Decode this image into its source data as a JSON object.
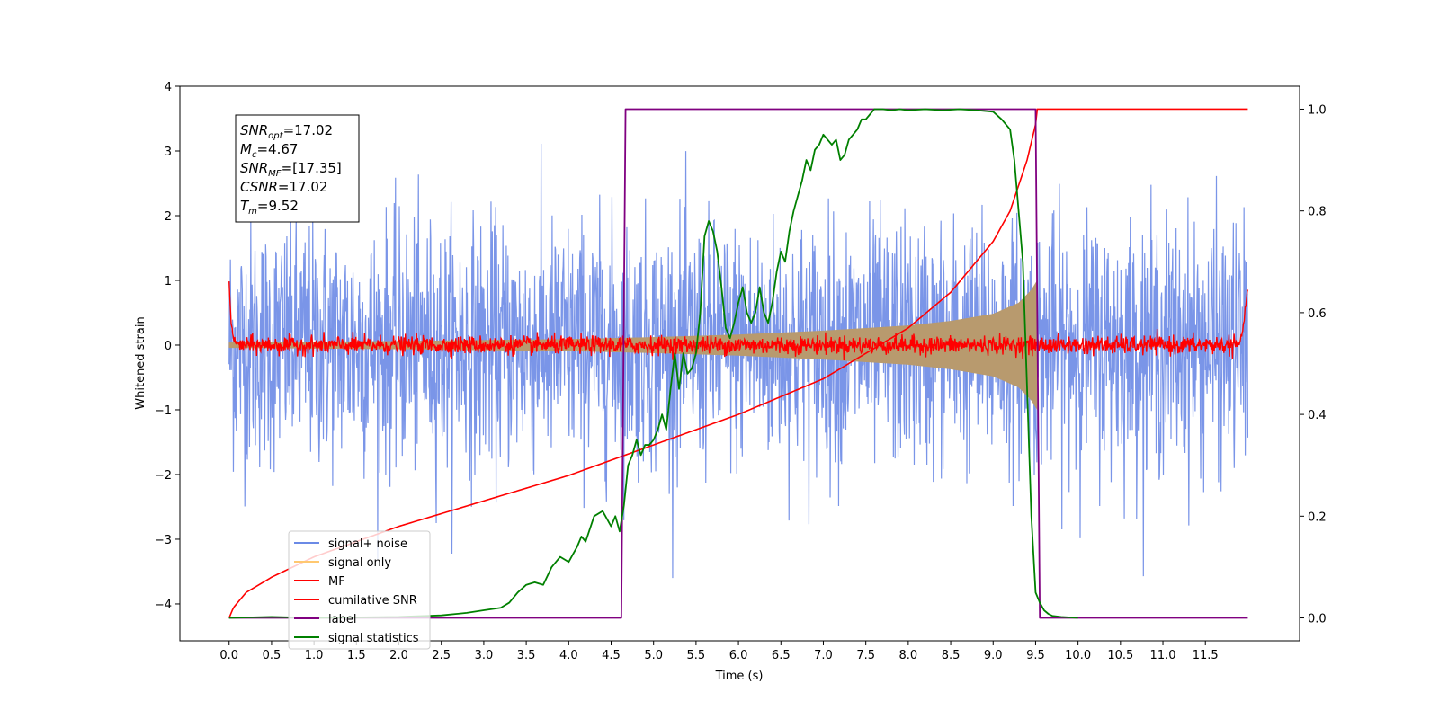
{
  "chart_data": {
    "type": "line",
    "xlabel": "Time (s)",
    "ylabel": "Whitened strain",
    "x_ticks": [
      "0.0",
      "0.5",
      "1.0",
      "1.5",
      "2.0",
      "2.5",
      "3.0",
      "3.5",
      "4.0",
      "4.5",
      "5.0",
      "5.5",
      "6.0",
      "6.5",
      "7.0",
      "7.5",
      "8.0",
      "8.5",
      "9.0",
      "9.5",
      "10.0",
      "10.5",
      "11.0",
      "11.5"
    ],
    "y_ticks": [
      "4",
      "3",
      "2",
      "1",
      "0",
      "−1",
      "−2",
      "−3",
      "−4"
    ],
    "y2_ticks": [
      "1.0",
      "0.8",
      "0.6",
      "0.4",
      "0.2",
      "0.0"
    ],
    "xlim": [
      -0.58,
      12.61
    ],
    "ylim": [
      -4.57,
      4.0
    ],
    "y2lim": [
      -0.045,
      1.045
    ],
    "annotation": {
      "lines": [
        {
          "base": "SNR",
          "sub": "opt",
          "rest": "=17.02"
        },
        {
          "base": "M",
          "sub": "c",
          "rest": "=4.67"
        },
        {
          "base": "SNR",
          "sub": "MF",
          "rest": "=[17.35]"
        },
        {
          "base": "CSNR",
          "sub": "",
          "rest": "=17.02"
        },
        {
          "base": "T",
          "sub": "m",
          "rest": "=9.52"
        }
      ]
    },
    "legend": {
      "placement": "lower-left",
      "entries": [
        {
          "label": "signal+ noise",
          "color": "#6b8ae6"
        },
        {
          "label": "signal only",
          "color": "#ffc870"
        },
        {
          "label": "MF",
          "color": "#ff0000"
        },
        {
          "label": "cumilative SNR",
          "color": "#ff0000"
        },
        {
          "label": "label",
          "color": "#800080"
        },
        {
          "label": "signal statistics",
          "color": "#008000"
        }
      ]
    },
    "series": [
      {
        "name": "signal+ noise",
        "axis": "left",
        "color": "#6b8ae6",
        "description_range": [
          0.0,
          12.0
        ],
        "amplitude_typical": 1.2,
        "amplitude_peak": 3.6
      },
      {
        "name": "signal only",
        "axis": "left",
        "color": "#b89a6e",
        "envelope": {
          "x": [
            0.0,
            2.0,
            4.0,
            5.0,
            6.0,
            7.0,
            8.0,
            8.5,
            9.0,
            9.3,
            9.45,
            9.52
          ],
          "y": [
            0.04,
            0.06,
            0.09,
            0.12,
            0.16,
            0.22,
            0.3,
            0.37,
            0.48,
            0.65,
            0.85,
            1.0
          ]
        }
      },
      {
        "name": "MF",
        "axis": "left",
        "color": "#ff0000",
        "x": [
          0.0,
          0.02,
          0.05,
          0.1,
          11.9,
          11.95,
          12.0
        ],
        "y": [
          1.0,
          0.4,
          0.1,
          0.0,
          0.0,
          0.3,
          0.9
        ],
        "noise_amplitude": 0.07
      },
      {
        "name": "cumilative SNR",
        "axis": "right",
        "color": "#ff0000",
        "x": [
          0.0,
          0.05,
          0.2,
          0.5,
          1.0,
          2.0,
          3.0,
          4.0,
          5.0,
          6.0,
          7.0,
          8.0,
          8.5,
          9.0,
          9.2,
          9.4,
          9.5,
          9.52,
          12.0
        ],
        "y": [
          0.0,
          0.02,
          0.05,
          0.08,
          0.12,
          0.18,
          0.23,
          0.28,
          0.34,
          0.4,
          0.47,
          0.57,
          0.64,
          0.74,
          0.8,
          0.9,
          0.97,
          1.0,
          1.0
        ]
      },
      {
        "name": "label",
        "axis": "right",
        "color": "#800080",
        "x": [
          0.0,
          4.62,
          4.67,
          9.5,
          9.55,
          12.0
        ],
        "y": [
          0.0,
          0.0,
          1.0,
          1.0,
          0.0,
          0.0
        ]
      },
      {
        "name": "signal statistics",
        "axis": "right",
        "color": "#008000",
        "x": [
          0.0,
          0.5,
          1.0,
          2.0,
          2.5,
          2.8,
          3.0,
          3.2,
          3.3,
          3.4,
          3.5,
          3.6,
          3.7,
          3.8,
          3.9,
          4.0,
          4.1,
          4.15,
          4.2,
          4.3,
          4.4,
          4.5,
          4.55,
          4.6,
          4.65,
          4.7,
          4.75,
          4.8,
          4.85,
          4.9,
          4.95,
          5.0,
          5.05,
          5.1,
          5.15,
          5.2,
          5.25,
          5.3,
          5.35,
          5.4,
          5.45,
          5.5,
          5.55,
          5.6,
          5.65,
          5.7,
          5.75,
          5.8,
          5.85,
          5.9,
          5.95,
          6.0,
          6.05,
          6.1,
          6.15,
          6.2,
          6.25,
          6.3,
          6.35,
          6.4,
          6.45,
          6.5,
          6.55,
          6.6,
          6.65,
          6.7,
          6.75,
          6.8,
          6.85,
          6.9,
          6.95,
          7.0,
          7.05,
          7.1,
          7.15,
          7.2,
          7.25,
          7.3,
          7.35,
          7.4,
          7.45,
          7.5,
          7.55,
          7.6,
          7.65,
          7.7,
          7.8,
          7.9,
          8.0,
          8.2,
          8.4,
          8.6,
          8.8,
          9.0,
          9.1,
          9.2,
          9.25,
          9.3,
          9.35,
          9.4,
          9.45,
          9.5,
          9.55,
          9.6,
          9.65,
          9.7,
          9.8,
          10.0,
          12.0
        ],
        "y": [
          0.0,
          0.002,
          0.0,
          0.002,
          0.005,
          0.01,
          0.015,
          0.02,
          0.03,
          0.05,
          0.065,
          0.07,
          0.065,
          0.1,
          0.12,
          0.11,
          0.14,
          0.16,
          0.15,
          0.2,
          0.21,
          0.18,
          0.2,
          0.17,
          0.22,
          0.3,
          0.32,
          0.35,
          0.32,
          0.34,
          0.34,
          0.35,
          0.37,
          0.4,
          0.37,
          0.45,
          0.52,
          0.45,
          0.52,
          0.48,
          0.49,
          0.52,
          0.6,
          0.75,
          0.78,
          0.76,
          0.72,
          0.65,
          0.57,
          0.55,
          0.58,
          0.62,
          0.65,
          0.6,
          0.58,
          0.6,
          0.65,
          0.6,
          0.58,
          0.62,
          0.68,
          0.72,
          0.7,
          0.76,
          0.8,
          0.83,
          0.86,
          0.9,
          0.88,
          0.92,
          0.93,
          0.95,
          0.94,
          0.93,
          0.94,
          0.9,
          0.91,
          0.94,
          0.95,
          0.96,
          0.98,
          0.98,
          0.99,
          1.0,
          1.0,
          1.0,
          0.998,
          1.0,
          0.998,
          1.0,
          0.998,
          1.0,
          0.998,
          0.995,
          0.98,
          0.96,
          0.9,
          0.8,
          0.7,
          0.45,
          0.2,
          0.05,
          0.03,
          0.015,
          0.008,
          0.004,
          0.002,
          0.0,
          0.0
        ]
      }
    ]
  }
}
